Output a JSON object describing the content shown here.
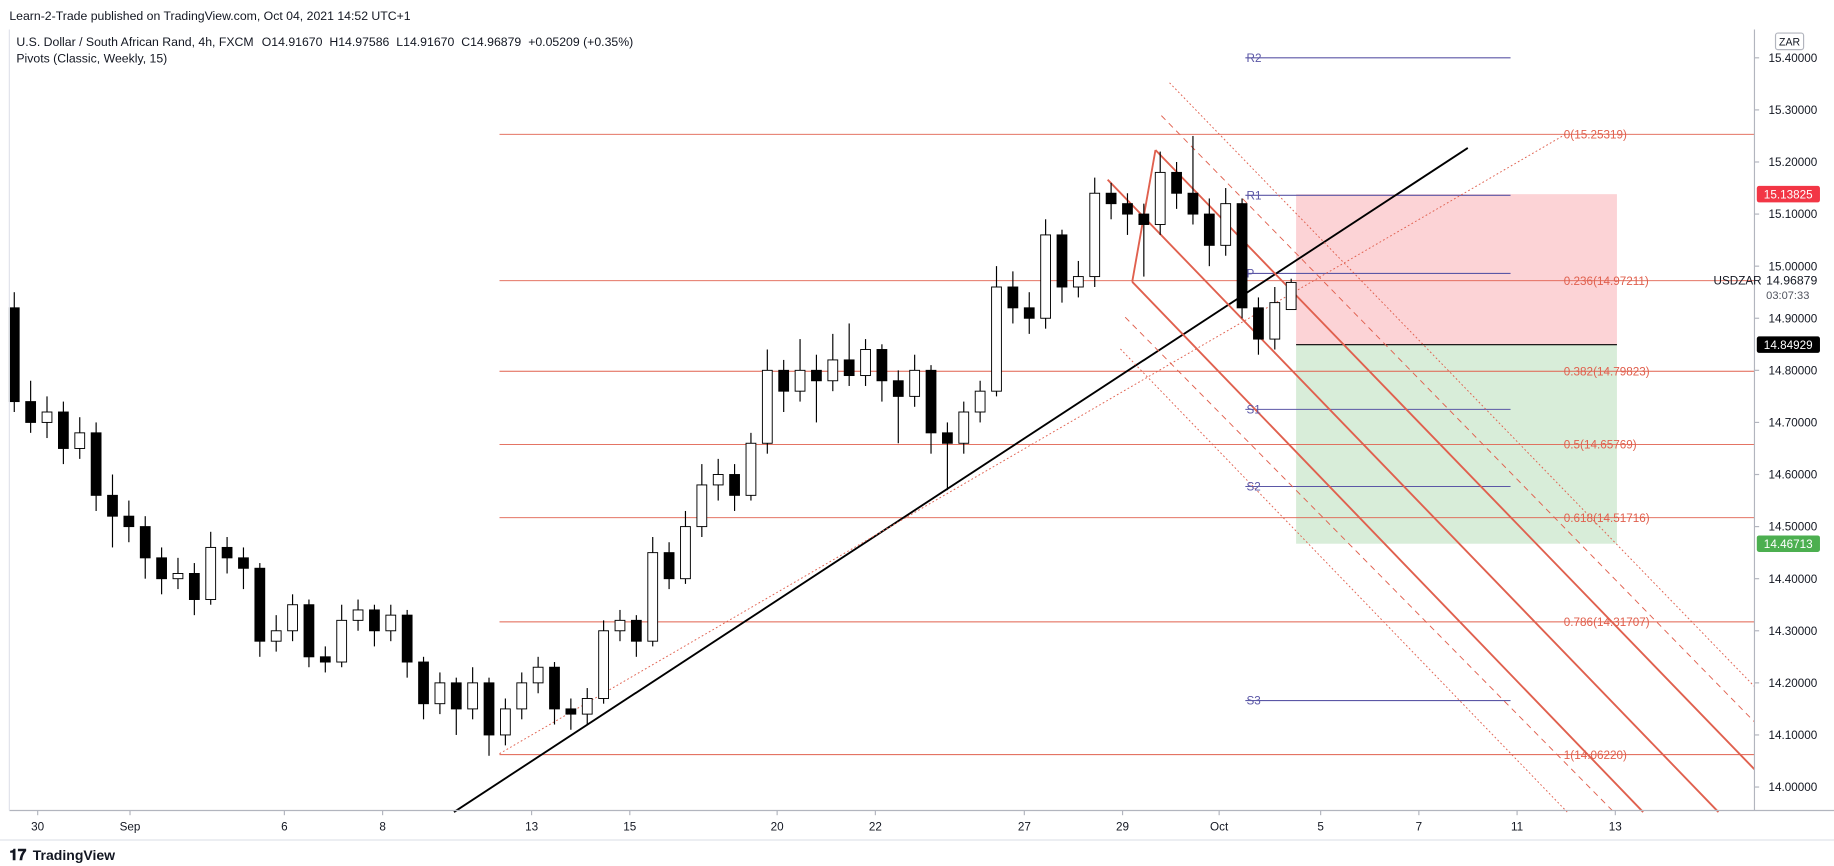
{
  "chart_data": {
    "type": "candlestick",
    "publisher": "Learn-2-Trade published on TradingView.com, Oct 04, 2021 14:52 UTC+1",
    "symbol": "U.S. Dollar / South African Rand, 4h, FXCM",
    "ohlc": [
      {
        "label": "O",
        "value": "14.91670"
      },
      {
        "label": "H",
        "value": "14.97586"
      },
      {
        "label": "L",
        "value": "14.91670"
      },
      {
        "label": "C",
        "value": "14.96879"
      },
      {
        "label": "",
        "value": "+0.05209 (+0.35%)"
      }
    ],
    "indicator": "Pivots (Classic, Weekly, 15)",
    "currency": "ZAR",
    "ticker": "USDZAR",
    "countdown": "03:07:33",
    "last_price": 14.96879,
    "brand": "TradingView",
    "ylim": [
      13.955,
      15.511
    ],
    "yticks": [
      {
        "value": 14.0,
        "label": "14.00000"
      },
      {
        "value": 14.1,
        "label": "14.10000"
      },
      {
        "value": 14.2,
        "label": "14.20000"
      },
      {
        "value": 14.3,
        "label": "14.30000"
      },
      {
        "value": 14.4,
        "label": "14.40000"
      },
      {
        "value": 14.5,
        "label": "14.50000"
      },
      {
        "value": 14.6,
        "label": "14.60000"
      },
      {
        "value": 14.7,
        "label": "14.70000"
      },
      {
        "value": 14.8,
        "label": "14.80000"
      },
      {
        "value": 14.9,
        "label": "14.90000"
      },
      {
        "value": 15.0,
        "label": "15.00000"
      },
      {
        "value": 15.1,
        "label": "15.10000"
      },
      {
        "value": 15.2,
        "label": "15.20000"
      },
      {
        "value": 15.3,
        "label": "15.30000"
      },
      {
        "value": 15.4,
        "label": "15.40000"
      }
    ],
    "xlim": [
      -0.3,
      106.3
    ],
    "xticks": [
      {
        "value": 1.43,
        "label": "30"
      },
      {
        "value": 7.07,
        "label": "Sep"
      },
      {
        "value": 16.5,
        "label": "6"
      },
      {
        "value": 22.5,
        "label": "8"
      },
      {
        "value": 31.6,
        "label": "13"
      },
      {
        "value": 37.6,
        "label": "15"
      },
      {
        "value": 46.6,
        "label": "20"
      },
      {
        "value": 52.6,
        "label": "22"
      },
      {
        "value": 61.7,
        "label": "27"
      },
      {
        "value": 67.7,
        "label": "29"
      },
      {
        "value": 73.6,
        "label": "Oct"
      },
      {
        "value": 79.8,
        "label": "5"
      },
      {
        "value": 85.8,
        "label": "7"
      },
      {
        "value": 91.8,
        "label": "11"
      },
      {
        "value": 97.8,
        "label": "13"
      }
    ],
    "up_color": "#ffffff",
    "down_color": "#000000",
    "candles": [
      [
        14.92,
        14.95,
        14.72,
        14.74
      ],
      [
        14.74,
        14.78,
        14.68,
        14.7
      ],
      [
        14.7,
        14.75,
        14.67,
        14.72
      ],
      [
        14.72,
        14.74,
        14.62,
        14.65
      ],
      [
        14.65,
        14.71,
        14.63,
        14.68
      ],
      [
        14.68,
        14.7,
        14.53,
        14.56
      ],
      [
        14.56,
        14.6,
        14.46,
        14.52
      ],
      [
        14.52,
        14.55,
        14.47,
        14.5
      ],
      [
        14.5,
        14.52,
        14.4,
        14.44
      ],
      [
        14.44,
        14.46,
        14.37,
        14.4
      ],
      [
        14.4,
        14.44,
        14.38,
        14.41
      ],
      [
        14.41,
        14.43,
        14.33,
        14.36
      ],
      [
        14.36,
        14.49,
        14.35,
        14.46
      ],
      [
        14.46,
        14.48,
        14.41,
        14.44
      ],
      [
        14.44,
        14.46,
        14.38,
        14.42
      ],
      [
        14.42,
        14.43,
        14.25,
        14.28
      ],
      [
        14.28,
        14.33,
        14.26,
        14.3
      ],
      [
        14.3,
        14.37,
        14.28,
        14.35
      ],
      [
        14.35,
        14.36,
        14.23,
        14.25
      ],
      [
        14.25,
        14.27,
        14.22,
        14.24
      ],
      [
        14.24,
        14.35,
        14.23,
        14.32
      ],
      [
        14.32,
        14.36,
        14.3,
        14.34
      ],
      [
        14.34,
        14.35,
        14.27,
        14.3
      ],
      [
        14.3,
        14.35,
        14.28,
        14.33
      ],
      [
        14.33,
        14.34,
        14.21,
        14.24
      ],
      [
        14.24,
        14.25,
        14.13,
        14.16
      ],
      [
        14.16,
        14.22,
        14.14,
        14.2
      ],
      [
        14.2,
        14.21,
        14.1,
        14.15
      ],
      [
        14.15,
        14.23,
        14.13,
        14.2
      ],
      [
        14.2,
        14.21,
        14.06,
        14.1
      ],
      [
        14.1,
        14.17,
        14.08,
        14.15
      ],
      [
        14.15,
        14.22,
        14.13,
        14.2
      ],
      [
        14.2,
        14.25,
        14.18,
        14.23
      ],
      [
        14.23,
        14.24,
        14.12,
        14.15
      ],
      [
        14.15,
        14.17,
        14.11,
        14.14
      ],
      [
        14.14,
        14.19,
        14.12,
        14.17
      ],
      [
        14.17,
        14.32,
        14.16,
        14.3
      ],
      [
        14.3,
        14.34,
        14.28,
        14.32
      ],
      [
        14.32,
        14.33,
        14.25,
        14.28
      ],
      [
        14.28,
        14.48,
        14.27,
        14.45
      ],
      [
        14.45,
        14.47,
        14.38,
        14.4
      ],
      [
        14.4,
        14.53,
        14.39,
        14.5
      ],
      [
        14.5,
        14.62,
        14.48,
        14.58
      ],
      [
        14.58,
        14.63,
        14.55,
        14.6
      ],
      [
        14.6,
        14.62,
        14.53,
        14.56
      ],
      [
        14.56,
        14.68,
        14.55,
        14.66
      ],
      [
        14.66,
        14.84,
        14.64,
        14.8
      ],
      [
        14.8,
        14.82,
        14.72,
        14.76
      ],
      [
        14.76,
        14.86,
        14.74,
        14.8
      ],
      [
        14.8,
        14.83,
        14.7,
        14.78
      ],
      [
        14.78,
        14.87,
        14.76,
        14.82
      ],
      [
        14.82,
        14.89,
        14.77,
        14.79
      ],
      [
        14.79,
        14.86,
        14.77,
        14.84
      ],
      [
        14.84,
        14.85,
        14.74,
        14.78
      ],
      [
        14.78,
        14.8,
        14.66,
        14.75
      ],
      [
        14.75,
        14.83,
        14.73,
        14.8
      ],
      [
        14.8,
        14.81,
        14.64,
        14.68
      ],
      [
        14.68,
        14.7,
        14.57,
        14.66
      ],
      [
        14.66,
        14.74,
        14.64,
        14.72
      ],
      [
        14.72,
        14.78,
        14.7,
        14.76
      ],
      [
        14.76,
        15.0,
        14.75,
        14.96
      ],
      [
        14.96,
        14.99,
        14.89,
        14.92
      ],
      [
        14.92,
        14.95,
        14.87,
        14.9
      ],
      [
        14.9,
        15.09,
        14.88,
        15.06
      ],
      [
        15.06,
        15.07,
        14.93,
        14.96
      ],
      [
        14.96,
        15.01,
        14.94,
        14.98
      ],
      [
        14.98,
        15.17,
        14.96,
        15.14
      ],
      [
        15.14,
        15.16,
        15.09,
        15.12
      ],
      [
        15.12,
        15.14,
        15.06,
        15.1
      ],
      [
        15.1,
        15.12,
        14.98,
        15.08
      ],
      [
        15.08,
        15.22,
        15.06,
        15.18
      ],
      [
        15.18,
        15.2,
        15.11,
        15.14
      ],
      [
        15.14,
        15.25,
        15.08,
        15.1
      ],
      [
        15.1,
        15.13,
        15.0,
        15.04
      ],
      [
        15.04,
        15.15,
        15.02,
        15.12
      ],
      [
        15.12,
        15.13,
        14.9,
        14.92
      ],
      [
        14.92,
        14.94,
        14.83,
        14.86
      ],
      [
        14.86,
        14.96,
        14.84,
        14.93
      ],
      [
        14.9167,
        14.97586,
        14.9167,
        14.96879
      ]
    ],
    "fib_color": "#e0604e",
    "fib_x": [
      29.64,
      106.3
    ],
    "fib_levels": [
      {
        "value": 15.25319,
        "label": "0(15.25319)"
      },
      {
        "value": 14.97211,
        "label": "0.236(14.97211)"
      },
      {
        "value": 14.79823,
        "label": "0.382(14.79823)"
      },
      {
        "value": 14.65769,
        "label": "0.5(14.65769)"
      },
      {
        "value": 14.51716,
        "label": "0.618(14.51716)"
      },
      {
        "value": 14.31707,
        "label": "0.786(14.31707)"
      },
      {
        "value": 14.0622,
        "label": "1(14.06220)"
      }
    ],
    "pivot_color": "#5b57a6",
    "pivot_x": [
      75.2,
      91.4
    ],
    "pivots": [
      {
        "value": 15.4,
        "label": "R2"
      },
      {
        "value": 15.136,
        "label": "R1"
      },
      {
        "value": 14.986,
        "label": "P"
      },
      {
        "value": 14.725,
        "label": "S1"
      },
      {
        "value": 14.577,
        "label": "S2"
      },
      {
        "value": 14.166,
        "label": "S3"
      }
    ],
    "position": {
      "x": [
        78.3,
        97.9
      ],
      "entry": 14.84929,
      "stop": 15.13825,
      "target": 14.46713
    },
    "lines": [
      {
        "color": "#000000",
        "style": "solid",
        "x": [
          26.86,
          88.79
        ],
        "y": [
          13.952,
          15.227
        ]
      },
      {
        "color": "#e0604e",
        "style": "dotted",
        "x": [
          29.64,
          94.86
        ],
        "y": [
          14.064,
          15.255
        ]
      },
      {
        "color": "#e0604e",
        "style": "solid",
        "x": [
          66.79,
          104.1
        ],
        "y": [
          15.166,
          13.952
        ]
      },
      {
        "color": "#e0604e",
        "style": "solid",
        "x": [
          69.71,
          106.3
        ],
        "y": [
          15.223,
          14.034
        ]
      },
      {
        "color": "#e0604e",
        "style": "solid",
        "x": [
          68.29,
          99.5
        ],
        "y": [
          14.97,
          13.952
        ]
      },
      {
        "color": "#e0604e",
        "style": "solid",
        "x": [
          68.29,
          69.71
        ],
        "y": [
          14.97,
          15.223
        ]
      },
      {
        "color": "#e0604e",
        "style": "dashed",
        "x": [
          70.07,
          106.3
        ],
        "y": [
          15.289,
          14.125
        ]
      },
      {
        "color": "#e0604e",
        "style": "dotted",
        "x": [
          70.57,
          106.3
        ],
        "y": [
          15.352,
          14.193
        ]
      },
      {
        "color": "#e0604e",
        "style": "dashed",
        "x": [
          67.86,
          97.71
        ],
        "y": [
          14.902,
          13.952
        ]
      },
      {
        "color": "#e0604e",
        "style": "dotted",
        "x": [
          67.57,
          94.86
        ],
        "y": [
          14.841,
          13.952
        ]
      }
    ]
  }
}
